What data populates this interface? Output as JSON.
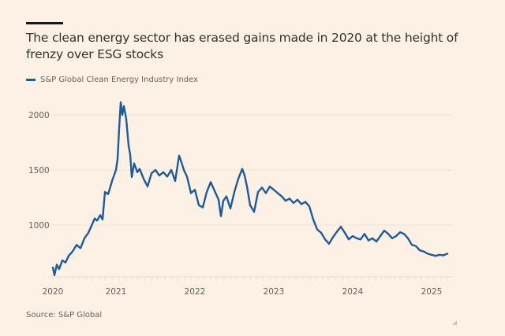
{
  "header": {
    "title": "The clean energy sector has erased gains made in 2020 at the height of frenzy over ESG stocks"
  },
  "legend": {
    "label": "S&P Global Clean Energy Industry Index",
    "color": "#1f5a9a"
  },
  "source": "Source: S&P Global",
  "chart_data": {
    "type": "line",
    "title": "The clean energy sector has erased gains made in 2020 at the height of frenzy over ESG stocks",
    "xlabel": "",
    "ylabel": "",
    "legend_position": "top-left",
    "grid": true,
    "x_ticks": [
      "2020",
      "2021",
      "2022",
      "2023",
      "2024",
      "2025"
    ],
    "y_ticks": [
      1000,
      1500,
      2000
    ],
    "xlim": [
      2019.8,
      2025.3
    ],
    "ylim": [
      530,
      2150
    ],
    "series": [
      {
        "name": "S&P Global Clean Energy Industry Index",
        "color": "#1f5a9a",
        "x": [
          2020.2,
          2020.22,
          2020.25,
          2020.28,
          2020.32,
          2020.36,
          2020.4,
          2020.45,
          2020.5,
          2020.55,
          2020.6,
          2020.65,
          2020.7,
          2020.73,
          2020.76,
          2020.8,
          2020.83,
          2020.86,
          2020.9,
          2020.95,
          2021.0,
          2021.02,
          2021.04,
          2021.06,
          2021.08,
          2021.1,
          2021.13,
          2021.16,
          2021.18,
          2021.2,
          2021.23,
          2021.27,
          2021.3,
          2021.35,
          2021.4,
          2021.45,
          2021.5,
          2021.55,
          2021.6,
          2021.65,
          2021.7,
          2021.75,
          2021.8,
          2021.83,
          2021.86,
          2021.9,
          2021.95,
          2022.0,
          2022.05,
          2022.1,
          2022.15,
          2022.2,
          2022.25,
          2022.3,
          2022.33,
          2022.36,
          2022.4,
          2022.45,
          2022.5,
          2022.55,
          2022.6,
          2022.63,
          2022.66,
          2022.7,
          2022.75,
          2022.8,
          2022.85,
          2022.9,
          2022.95,
          2023.0,
          2023.05,
          2023.1,
          2023.15,
          2023.2,
          2023.25,
          2023.3,
          2023.35,
          2023.4,
          2023.45,
          2023.5,
          2023.55,
          2023.6,
          2023.65,
          2023.7,
          2023.75,
          2023.8,
          2023.85,
          2023.9,
          2023.95,
          2024.0,
          2024.05,
          2024.1,
          2024.15,
          2024.2,
          2024.25,
          2024.3,
          2024.35,
          2024.4,
          2024.45,
          2024.5,
          2024.55,
          2024.6,
          2024.65,
          2024.7,
          2024.75,
          2024.8,
          2024.85,
          2024.9,
          2024.95,
          2025.0,
          2025.05,
          2025.1,
          2025.15,
          2025.2
        ],
        "values": [
          615,
          545,
          640,
          600,
          680,
          660,
          720,
          760,
          820,
          790,
          880,
          930,
          1010,
          1060,
          1040,
          1090,
          1050,
          1300,
          1280,
          1400,
          1500,
          1600,
          1880,
          2115,
          2000,
          2080,
          1960,
          1720,
          1640,
          1435,
          1560,
          1480,
          1510,
          1420,
          1350,
          1470,
          1500,
          1450,
          1480,
          1440,
          1500,
          1400,
          1630,
          1570,
          1500,
          1440,
          1290,
          1320,
          1180,
          1160,
          1300,
          1390,
          1310,
          1230,
          1080,
          1220,
          1260,
          1150,
          1300,
          1420,
          1510,
          1450,
          1350,
          1180,
          1120,
          1300,
          1340,
          1290,
          1350,
          1320,
          1290,
          1260,
          1220,
          1240,
          1200,
          1230,
          1190,
          1210,
          1170,
          1050,
          960,
          930,
          870,
          830,
          890,
          940,
          985,
          930,
          870,
          900,
          880,
          870,
          920,
          860,
          880,
          850,
          900,
          950,
          920,
          880,
          900,
          935,
          920,
          880,
          820,
          810,
          770,
          760,
          740,
          730,
          720,
          730,
          725,
          740
        ]
      }
    ]
  }
}
